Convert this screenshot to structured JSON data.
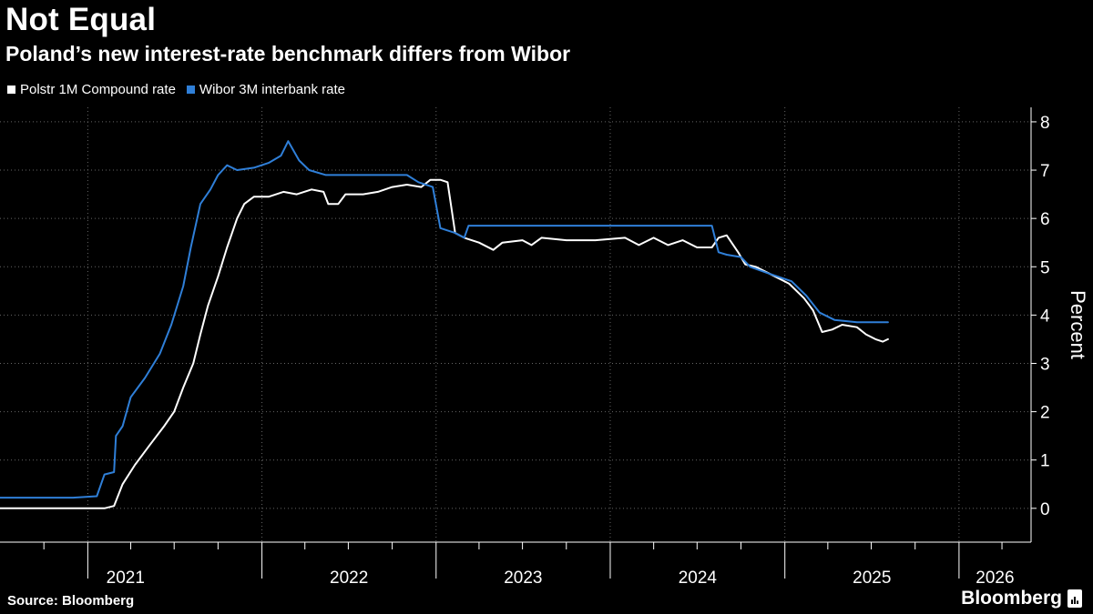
{
  "header": {
    "title": "Not Equal",
    "subtitle": "Poland’s new interest-rate benchmark differs from Wibor"
  },
  "footer": {
    "source": "Source: Bloomberg",
    "brand": "Bloomberg"
  },
  "colors": {
    "background": "#000000",
    "polstr": "#ffffff",
    "wibor": "#2f7fd8",
    "grid": "#666666",
    "axis": "#ffffff"
  },
  "chart_data": {
    "type": "line",
    "ylabel": "Percent",
    "ylim": [
      -0.7,
      8.3
    ],
    "yticks": [
      "0",
      "1",
      "2",
      "3",
      "4",
      "5",
      "6",
      "7",
      "8"
    ],
    "x_range": [
      "2020-07-01",
      "2026-06-01"
    ],
    "year_labels": [
      "2021",
      "2022",
      "2023",
      "2024",
      "2025",
      "2026"
    ],
    "grid": "dotted, both axes",
    "legend_position": "top-left",
    "series": [
      {
        "name": "Polstr 1M Compound rate",
        "color": "#ffffff",
        "points": [
          [
            "2020-07-01",
            0.0
          ],
          [
            "2021-01-15",
            0.0
          ],
          [
            "2021-02-05",
            0.0
          ],
          [
            "2021-02-25",
            0.05
          ],
          [
            "2021-03-15",
            0.5
          ],
          [
            "2021-04-10",
            0.9
          ],
          [
            "2021-05-10",
            1.3
          ],
          [
            "2021-06-10",
            1.7
          ],
          [
            "2021-07-01",
            2.0
          ],
          [
            "2021-07-20",
            2.5
          ],
          [
            "2021-08-10",
            3.0
          ],
          [
            "2021-08-25",
            3.6
          ],
          [
            "2021-09-10",
            4.2
          ],
          [
            "2021-10-01",
            4.8
          ],
          [
            "2021-10-20",
            5.4
          ],
          [
            "2021-11-10",
            6.0
          ],
          [
            "2021-11-25",
            6.3
          ],
          [
            "2021-12-15",
            6.45
          ],
          [
            "2022-01-15",
            6.45
          ],
          [
            "2022-02-15",
            6.55
          ],
          [
            "2022-03-15",
            6.5
          ],
          [
            "2022-04-15",
            6.6
          ],
          [
            "2022-05-10",
            6.55
          ],
          [
            "2022-05-20",
            6.3
          ],
          [
            "2022-06-10",
            6.3
          ],
          [
            "2022-06-25",
            6.5
          ],
          [
            "2022-08-01",
            6.5
          ],
          [
            "2022-09-01",
            6.55
          ],
          [
            "2022-10-01",
            6.65
          ],
          [
            "2022-11-01",
            6.7
          ],
          [
            "2022-12-01",
            6.65
          ],
          [
            "2022-12-20",
            6.8
          ],
          [
            "2023-01-10",
            6.8
          ],
          [
            "2023-01-25",
            6.75
          ],
          [
            "2023-02-10",
            5.7
          ],
          [
            "2023-03-01",
            5.6
          ],
          [
            "2023-04-01",
            5.5
          ],
          [
            "2023-05-01",
            5.35
          ],
          [
            "2023-05-20",
            5.5
          ],
          [
            "2023-07-01",
            5.55
          ],
          [
            "2023-07-20",
            5.45
          ],
          [
            "2023-08-10",
            5.6
          ],
          [
            "2023-10-01",
            5.55
          ],
          [
            "2023-12-01",
            5.55
          ],
          [
            "2024-02-01",
            5.6
          ],
          [
            "2024-03-01",
            5.45
          ],
          [
            "2024-04-01",
            5.6
          ],
          [
            "2024-05-01",
            5.45
          ],
          [
            "2024-06-01",
            5.55
          ],
          [
            "2024-07-01",
            5.4
          ],
          [
            "2024-08-01",
            5.4
          ],
          [
            "2024-08-15",
            5.6
          ],
          [
            "2024-09-01",
            5.65
          ],
          [
            "2024-09-25",
            5.3
          ],
          [
            "2024-10-10",
            5.05
          ],
          [
            "2024-11-01",
            5.0
          ],
          [
            "2024-12-01",
            4.85
          ],
          [
            "2025-01-10",
            4.65
          ],
          [
            "2025-02-10",
            4.35
          ],
          [
            "2025-03-01",
            4.1
          ],
          [
            "2025-03-20",
            3.65
          ],
          [
            "2025-04-10",
            3.7
          ],
          [
            "2025-05-01",
            3.8
          ],
          [
            "2025-06-01",
            3.75
          ],
          [
            "2025-06-20",
            3.6
          ],
          [
            "2025-07-10",
            3.5
          ],
          [
            "2025-07-25",
            3.45
          ],
          [
            "2025-08-05",
            3.5
          ]
        ]
      },
      {
        "name": "Wibor 3M interbank rate",
        "color": "#2f7fd8",
        "points": [
          [
            "2020-07-01",
            0.22
          ],
          [
            "2020-12-01",
            0.22
          ],
          [
            "2021-01-20",
            0.25
          ],
          [
            "2021-02-05",
            0.7
          ],
          [
            "2021-02-25",
            0.75
          ],
          [
            "2021-03-01",
            1.5
          ],
          [
            "2021-03-15",
            1.7
          ],
          [
            "2021-04-01",
            2.3
          ],
          [
            "2021-05-01",
            2.7
          ],
          [
            "2021-06-01",
            3.2
          ],
          [
            "2021-06-25",
            3.8
          ],
          [
            "2021-07-20",
            4.6
          ],
          [
            "2021-08-05",
            5.4
          ],
          [
            "2021-08-25",
            6.3
          ],
          [
            "2021-09-15",
            6.6
          ],
          [
            "2021-10-01",
            6.9
          ],
          [
            "2021-10-20",
            7.1
          ],
          [
            "2021-11-10",
            7.0
          ],
          [
            "2021-12-15",
            7.05
          ],
          [
            "2022-01-15",
            7.15
          ],
          [
            "2022-02-10",
            7.3
          ],
          [
            "2022-02-25",
            7.6
          ],
          [
            "2022-03-20",
            7.2
          ],
          [
            "2022-04-10",
            7.0
          ],
          [
            "2022-05-15",
            6.9
          ],
          [
            "2022-07-01",
            6.9
          ],
          [
            "2022-09-01",
            6.9
          ],
          [
            "2022-11-01",
            6.9
          ],
          [
            "2022-11-25",
            6.75
          ],
          [
            "2022-12-25",
            6.65
          ],
          [
            "2023-01-10",
            5.8
          ],
          [
            "2023-02-10",
            5.7
          ],
          [
            "2023-03-01",
            5.6
          ],
          [
            "2023-03-10",
            5.85
          ],
          [
            "2023-06-01",
            5.85
          ],
          [
            "2023-10-01",
            5.85
          ],
          [
            "2024-02-01",
            5.85
          ],
          [
            "2024-06-01",
            5.85
          ],
          [
            "2024-08-01",
            5.85
          ],
          [
            "2024-08-15",
            5.3
          ],
          [
            "2024-09-01",
            5.25
          ],
          [
            "2024-10-01",
            5.2
          ],
          [
            "2024-10-20",
            5.0
          ],
          [
            "2024-12-01",
            4.85
          ],
          [
            "2025-01-15",
            4.7
          ],
          [
            "2025-02-15",
            4.4
          ],
          [
            "2025-03-15",
            4.05
          ],
          [
            "2025-04-15",
            3.9
          ],
          [
            "2025-06-01",
            3.85
          ],
          [
            "2025-08-05",
            3.85
          ]
        ]
      }
    ]
  }
}
